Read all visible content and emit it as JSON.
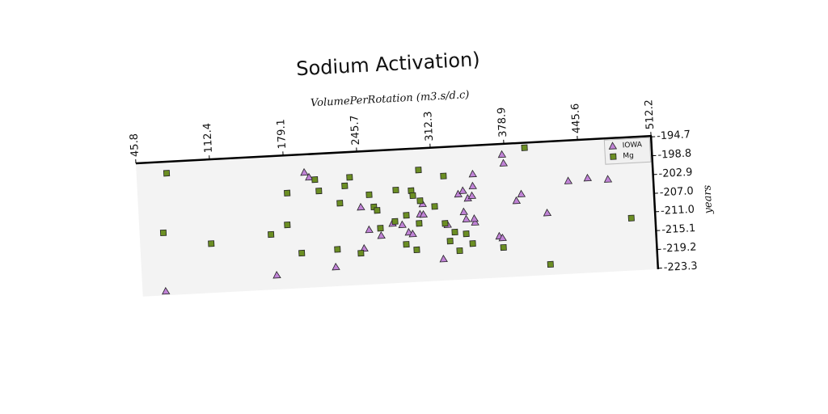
{
  "chart_data": {
    "type": "scatter",
    "title": "Sodium Activation)",
    "x_label": "VolumePerRotation (m3.s/d.c)",
    "y_label": "years",
    "xlim": [
      45.8,
      512.2
    ],
    "xticks": [
      45.8,
      112.4,
      179.1,
      245.7,
      312.3,
      378.9,
      445.6,
      512.2
    ],
    "ylim": [
      -223.5,
      -194.5
    ],
    "yticks": [
      -194.7,
      -198.8,
      -202.9,
      {
        "value": -207,
        "label": "-207.0"
      },
      {
        "value": -211,
        "label": "-211.0"
      },
      -215.1,
      -219.2,
      -223.3
    ],
    "legend": "upper right",
    "series": [
      {
        "name": "IOWA",
        "color": "#c083d6",
        "marker": "triangle",
        "x": [
          376.7,
          377.7,
          197.4,
          201.5,
          349.4,
          435.3,
          452.9,
          471.2,
          348.8,
          335.3,
          339.7,
          343.8,
          347.7,
          392.3,
          387.6,
          414.8,
          246.8,
          302.7,
          300.0,
          303.0,
          339.5,
          341.4,
          349.2,
          348.7,
          324.3,
          253.2,
          263.9,
          274.6,
          283.4,
          288.9,
          292.4,
          370.5,
          373.3,
          247.9,
          319.0,
          221.4,
          167.7,
          66.7
        ],
        "values": [
          -196.8,
          -198.7,
          -198.4,
          -199.5,
          -200.7,
          -203.3,
          -202.9,
          -203.4,
          -203.3,
          -204.9,
          -204.2,
          -205.9,
          -205.4,
          -205.6,
          -207.0,
          -210.0,
          -206.6,
          -206.6,
          -208.8,
          -208.9,
          -208.8,
          -210.4,
          -211.2,
          -210.4,
          -211.4,
          -211.6,
          -213.0,
          -210.5,
          -210.9,
          -212.6,
          -213.0,
          -214.5,
          -214.9,
          -215.6,
          -218.8,
          -219.3,
          -220.4,
          -222.6
        ]
      },
      {
        "name": "Mg",
        "color": "#6b8e23",
        "marker": "square",
        "x": [
          73.1,
          397.4,
          206.6,
          238.1,
          300.6,
          322.9,
          181.0,
          209.7,
          233.3,
          254.9,
          279.2,
          293.0,
          294.3,
          300.6,
          228.1,
          258.6,
          261.4,
          313.5,
          287.5,
          277.0,
          298.7,
          263.5,
          322.1,
          330.5,
          340.7,
          325.8,
          346.1,
          334.0,
          373.7,
          286.1,
          295.3,
          223.7,
          244.7,
          191.3,
          179.6,
          164.4,
          110.0,
          67.3,
          415.3,
          490.5
        ],
        "values": [
          -197.0,
          -195.6,
          -200.1,
          -200.0,
          -199.2,
          -200.8,
          -202.7,
          -202.6,
          -201.8,
          -204.0,
          -203.3,
          -203.6,
          -204.7,
          -205.9,
          -205.5,
          -206.7,
          -207.5,
          -207.3,
          -208.9,
          -210.1,
          -210.8,
          -211.4,
          -211.1,
          -213.1,
          -213.6,
          -215.0,
          -215.8,
          -217.2,
          -217.0,
          -215.2,
          -216.5,
          -215.5,
          -216.6,
          -215.9,
          -209.6,
          -211.5,
          -212.8,
          -209.9,
          -221.2,
          -212.1
        ]
      }
    ]
  }
}
